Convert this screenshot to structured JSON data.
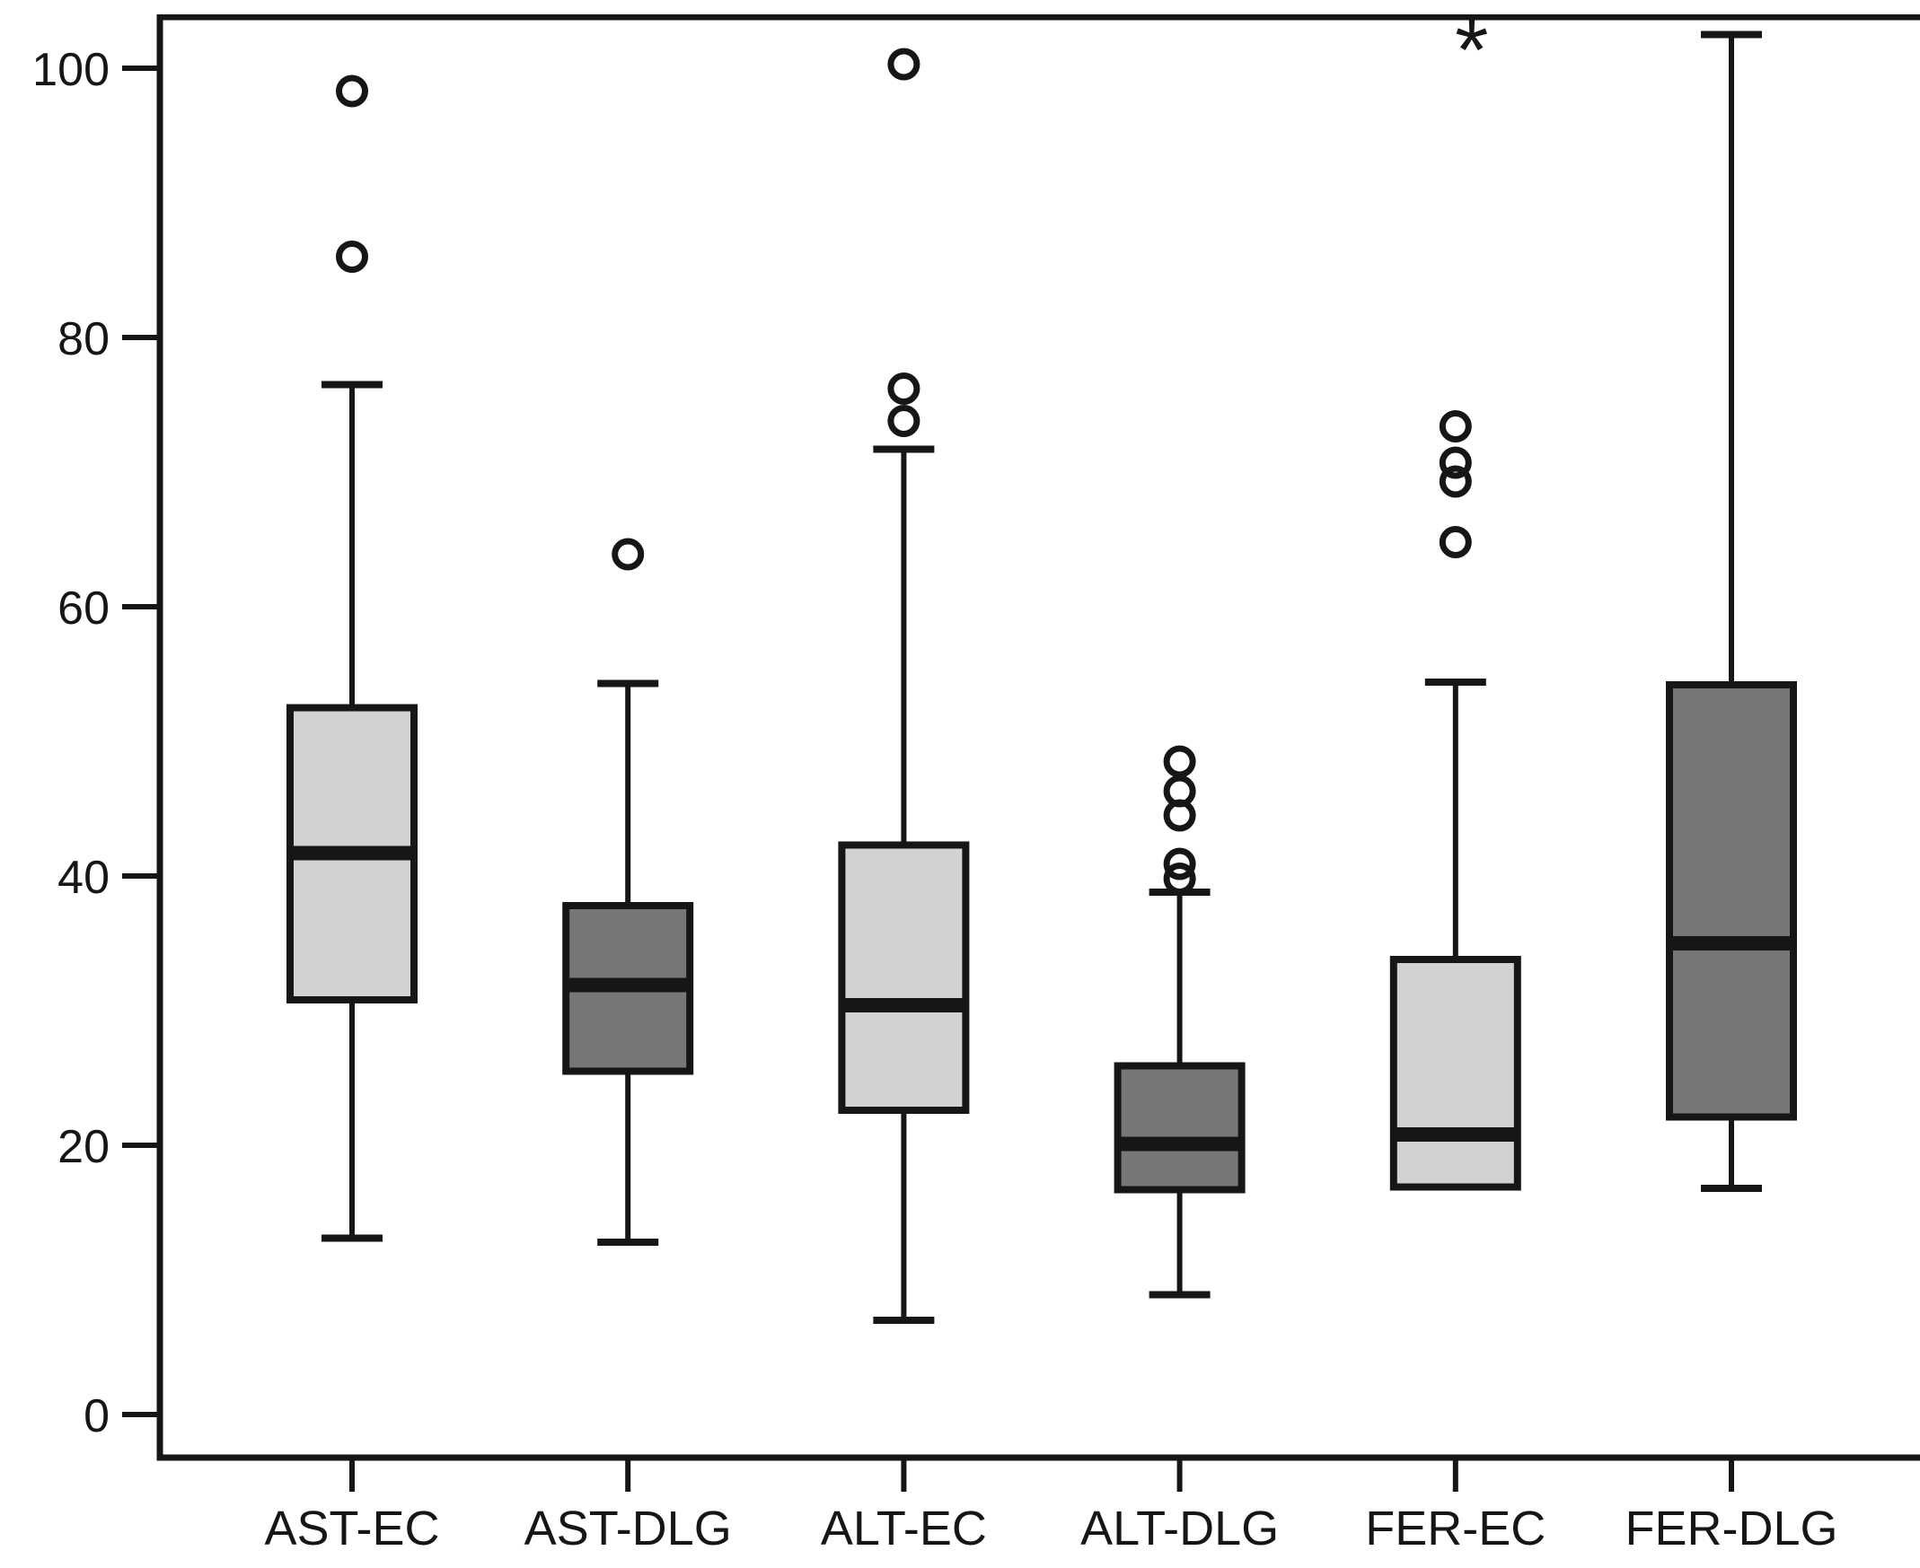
{
  "chart_data": {
    "type": "box",
    "title": "",
    "xlabel": "",
    "ylabel": "",
    "grid": false,
    "legend_position": "none",
    "categories": [
      "AST-EC",
      "AST-DLG",
      "ALT-EC",
      "ALT-DLG",
      "FER-EC",
      "FER-DLG"
    ],
    "yticks": [
      0,
      20,
      40,
      60,
      80,
      100
    ],
    "ytick_labels": [
      "0",
      "20",
      "40",
      "60",
      "80",
      "100"
    ],
    "ylim": [
      -3.2,
      103.8
    ],
    "extreme_marker": "*",
    "colors": {
      "light_box_fill": "#d2d2d2",
      "dark_box_fill": "#777777",
      "line": "#161616",
      "background": "#ffffff"
    },
    "series": [
      {
        "name": "AST-EC",
        "fill": "light_box_fill",
        "whisker_low": 13.1,
        "q1": 30.8,
        "median": 41.7,
        "q3": 52.5,
        "whisker_high": 76.5,
        "outliers": [
          86.0,
          98.3
        ],
        "extremes": []
      },
      {
        "name": "AST-DLG",
        "fill": "dark_box_fill",
        "whisker_low": 12.8,
        "q1": 25.5,
        "median": 31.9,
        "q3": 37.8,
        "whisker_high": 54.3,
        "outliers": [
          63.9
        ],
        "extremes": []
      },
      {
        "name": "ALT-EC",
        "fill": "light_box_fill",
        "whisker_low": 7.0,
        "q1": 22.6,
        "median": 30.4,
        "q3": 42.3,
        "whisker_high": 71.7,
        "outliers": [
          73.8,
          76.2,
          100.3
        ],
        "extremes": []
      },
      {
        "name": "ALT-DLG",
        "fill": "dark_box_fill",
        "whisker_low": 8.9,
        "q1": 16.7,
        "median": 20.1,
        "q3": 25.9,
        "whisker_high": 38.8,
        "outliers": [
          39.8,
          40.9,
          44.5,
          46.3,
          48.5
        ],
        "extremes": []
      },
      {
        "name": "FER-EC",
        "fill": "light_box_fill",
        "whisker_low": null,
        "q1": 16.9,
        "median": 20.8,
        "q3": 33.8,
        "whisker_high": 54.4,
        "outliers": [
          64.8,
          69.3,
          70.7,
          73.4
        ],
        "extremes": [
          102.5
        ]
      },
      {
        "name": "FER-DLG",
        "fill": "dark_box_fill",
        "whisker_low": 16.8,
        "q1": 22.1,
        "median": 35.0,
        "q3": 54.2,
        "whisker_high": 102.5,
        "outliers": [],
        "extremes": []
      }
    ]
  }
}
